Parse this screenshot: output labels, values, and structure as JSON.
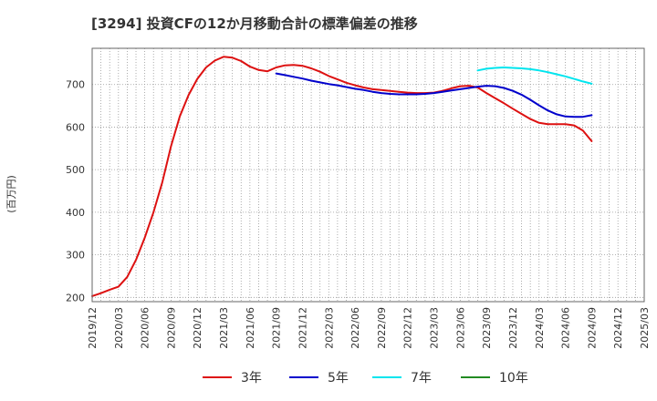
{
  "chart_data": {
    "type": "line",
    "title": "[3294]  投資CFの12か月移動合計の標準偏差の推移",
    "ylabel": "(百万円)",
    "xlabel": "",
    "ylim": [
      190,
      785
    ],
    "yticks": [
      200,
      300,
      400,
      500,
      600,
      700
    ],
    "xticks": [
      "2019/12",
      "2020/03",
      "2020/06",
      "2020/09",
      "2020/12",
      "2021/03",
      "2021/06",
      "2021/09",
      "2021/12",
      "2022/03",
      "2022/06",
      "2022/09",
      "2022/12",
      "2023/03",
      "2023/06",
      "2023/09",
      "2023/12",
      "2024/03",
      "2024/06",
      "2024/09",
      "2024/12",
      "2025/03"
    ],
    "grid": true,
    "legend_position": "bottom",
    "series": [
      {
        "name": "3年",
        "color": "#dd1111",
        "points": [
          [
            "2019/12",
            203
          ],
          [
            "2020/01",
            210
          ],
          [
            "2020/02",
            218
          ],
          [
            "2020/03",
            225
          ],
          [
            "2020/04",
            248
          ],
          [
            "2020/05",
            288
          ],
          [
            "2020/06",
            340
          ],
          [
            "2020/07",
            400
          ],
          [
            "2020/08",
            470
          ],
          [
            "2020/09",
            555
          ],
          [
            "2020/10",
            625
          ],
          [
            "2020/11",
            675
          ],
          [
            "2020/12",
            713
          ],
          [
            "2021/01",
            740
          ],
          [
            "2021/02",
            756
          ],
          [
            "2021/03",
            765
          ],
          [
            "2021/04",
            763
          ],
          [
            "2021/05",
            755
          ],
          [
            "2021/06",
            742
          ],
          [
            "2021/07",
            734
          ],
          [
            "2021/08",
            731
          ],
          [
            "2021/09",
            740
          ],
          [
            "2021/10",
            745
          ],
          [
            "2021/11",
            746
          ],
          [
            "2021/12",
            744
          ],
          [
            "2022/01",
            738
          ],
          [
            "2022/02",
            730
          ],
          [
            "2022/03",
            720
          ],
          [
            "2022/04",
            712
          ],
          [
            "2022/05",
            704
          ],
          [
            "2022/06",
            698
          ],
          [
            "2022/07",
            693
          ],
          [
            "2022/08",
            689
          ],
          [
            "2022/09",
            687
          ],
          [
            "2022/10",
            685
          ],
          [
            "2022/11",
            683
          ],
          [
            "2022/12",
            681
          ],
          [
            "2023/01",
            680
          ],
          [
            "2023/02",
            680
          ],
          [
            "2023/03",
            681
          ],
          [
            "2023/04",
            685
          ],
          [
            "2023/05",
            691
          ],
          [
            "2023/06",
            696
          ],
          [
            "2023/07",
            697
          ],
          [
            "2023/08",
            693
          ],
          [
            "2023/09",
            680
          ],
          [
            "2023/10",
            668
          ],
          [
            "2023/11",
            656
          ],
          [
            "2023/12",
            643
          ],
          [
            "2024/01",
            631
          ],
          [
            "2024/02",
            619
          ],
          [
            "2024/03",
            610
          ],
          [
            "2024/04",
            607
          ],
          [
            "2024/05",
            607
          ],
          [
            "2024/06",
            607
          ],
          [
            "2024/07",
            604
          ],
          [
            "2024/08",
            592
          ],
          [
            "2024/09",
            567
          ]
        ]
      },
      {
        "name": "5年",
        "color": "#0000cc",
        "points": [
          [
            "2021/09",
            726
          ],
          [
            "2021/10",
            722
          ],
          [
            "2021/11",
            718
          ],
          [
            "2021/12",
            714
          ],
          [
            "2022/01",
            709
          ],
          [
            "2022/02",
            705
          ],
          [
            "2022/03",
            701
          ],
          [
            "2022/04",
            698
          ],
          [
            "2022/05",
            694
          ],
          [
            "2022/06",
            690
          ],
          [
            "2022/07",
            687
          ],
          [
            "2022/08",
            683
          ],
          [
            "2022/09",
            680
          ],
          [
            "2022/10",
            678
          ],
          [
            "2022/11",
            677
          ],
          [
            "2022/12",
            677
          ],
          [
            "2023/01",
            677
          ],
          [
            "2023/02",
            678
          ],
          [
            "2023/03",
            680
          ],
          [
            "2023/04",
            683
          ],
          [
            "2023/05",
            686
          ],
          [
            "2023/06",
            689
          ],
          [
            "2023/07",
            692
          ],
          [
            "2023/08",
            695
          ],
          [
            "2023/09",
            697
          ],
          [
            "2023/10",
            696
          ],
          [
            "2023/11",
            692
          ],
          [
            "2023/12",
            685
          ],
          [
            "2024/01",
            676
          ],
          [
            "2024/02",
            664
          ],
          [
            "2024/03",
            651
          ],
          [
            "2024/04",
            639
          ],
          [
            "2024/05",
            630
          ],
          [
            "2024/06",
            625
          ],
          [
            "2024/07",
            624
          ],
          [
            "2024/08",
            624
          ],
          [
            "2024/09",
            628
          ]
        ]
      },
      {
        "name": "7年",
        "color": "#00e5ee",
        "points": [
          [
            "2023/08",
            733
          ],
          [
            "2023/09",
            737
          ],
          [
            "2023/10",
            739
          ],
          [
            "2023/11",
            740
          ],
          [
            "2023/12",
            739
          ],
          [
            "2024/01",
            738
          ],
          [
            "2024/02",
            736
          ],
          [
            "2024/03",
            733
          ],
          [
            "2024/04",
            729
          ],
          [
            "2024/05",
            724
          ],
          [
            "2024/06",
            719
          ],
          [
            "2024/07",
            713
          ],
          [
            "2024/08",
            707
          ],
          [
            "2024/09",
            702
          ]
        ]
      },
      {
        "name": "10年",
        "color": "#228b22",
        "points": []
      }
    ]
  }
}
